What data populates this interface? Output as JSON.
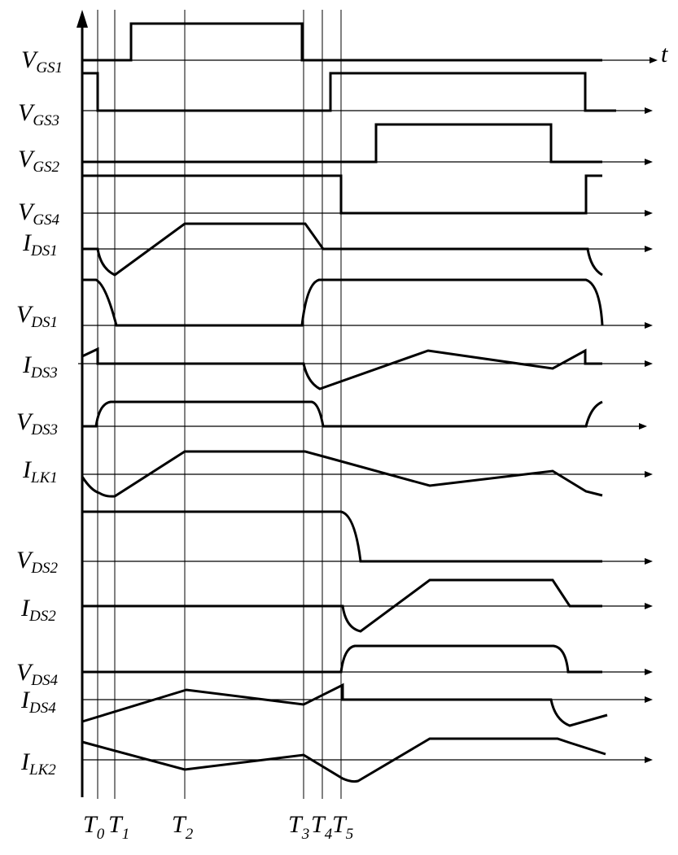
{
  "time_label": "t",
  "signals": [
    {
      "key": "vgs1",
      "main": "V",
      "sub": "GS1"
    },
    {
      "key": "vgs3",
      "main": "V",
      "sub": "GS3"
    },
    {
      "key": "vgs2",
      "main": "V",
      "sub": "GS2"
    },
    {
      "key": "vgs4",
      "main": "V",
      "sub": "GS4"
    },
    {
      "key": "ids1",
      "main": "I",
      "sub": "DS1"
    },
    {
      "key": "vds1",
      "main": "V",
      "sub": "DS1"
    },
    {
      "key": "ids3",
      "main": "I",
      "sub": "DS3"
    },
    {
      "key": "vds3",
      "main": "V",
      "sub": "DS3"
    },
    {
      "key": "ilk1",
      "main": "I",
      "sub": "LK1"
    },
    {
      "key": "vds2",
      "main": "V",
      "sub": "DS2"
    },
    {
      "key": "ids2",
      "main": "I",
      "sub": "DS2"
    },
    {
      "key": "vds4",
      "main": "V",
      "sub": "DS4"
    },
    {
      "key": "ids4",
      "main": "I",
      "sub": "DS4"
    },
    {
      "key": "ilk2",
      "main": "I",
      "sub": "LK2"
    }
  ],
  "time_markers": [
    {
      "main": "T",
      "sub": "0"
    },
    {
      "main": "T",
      "sub": "1"
    },
    {
      "main": "T",
      "sub": "2"
    },
    {
      "main": "T",
      "sub": "3"
    },
    {
      "main": "T",
      "sub": "4"
    },
    {
      "main": "T",
      "sub": "5"
    }
  ]
}
